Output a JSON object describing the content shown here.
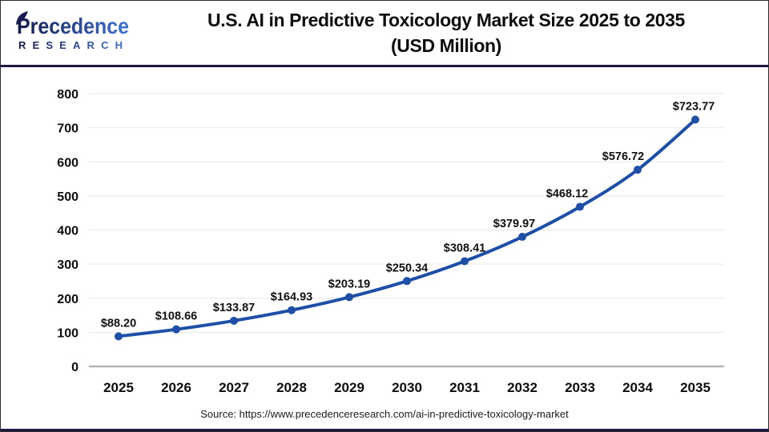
{
  "header": {
    "logo": {
      "name": "Precedence",
      "subtitle": "RESEARCH",
      "color_dark": "#151b4e",
      "color_light": "#3f73d3"
    },
    "title_line1": "U.S. AI in Predictive Toxicology Market Size 2025 to 2035",
    "title_line2": "(USD Million)"
  },
  "chart_data": {
    "type": "line",
    "title": "U.S. AI in Predictive Toxicology Market Size 2025 to 2035 (USD Million)",
    "categories": [
      "2025",
      "2026",
      "2027",
      "2028",
      "2029",
      "2030",
      "2031",
      "2032",
      "2033",
      "2034",
      "2035"
    ],
    "values": [
      88.2,
      108.66,
      133.87,
      164.93,
      203.19,
      250.34,
      308.41,
      379.97,
      468.12,
      576.72,
      723.77
    ],
    "point_labels": [
      "$88.20",
      "$108.66",
      "$133.87",
      "$164.93",
      "$203.19",
      "$250.34",
      "$308.41",
      "$379.97",
      "$468.12",
      "$576.72",
      "$723.77"
    ],
    "label_dx": [
      0,
      0,
      0,
      0,
      0,
      0,
      0,
      -10,
      -16,
      -18,
      -2
    ],
    "xlabel": "",
    "ylabel": "",
    "ylim": [
      0,
      800
    ],
    "ytick_interval": 100,
    "grid": true,
    "legend": "none",
    "line_color": "#1e4fa8",
    "marker_color": "#1e4fa8",
    "grid_color": "#e9e9e9",
    "axis_color": "#b3b3b3"
  },
  "footer": {
    "source": "Source: https://www.precedenceresearch.com/ai-in-predictive-toxicology-market"
  }
}
